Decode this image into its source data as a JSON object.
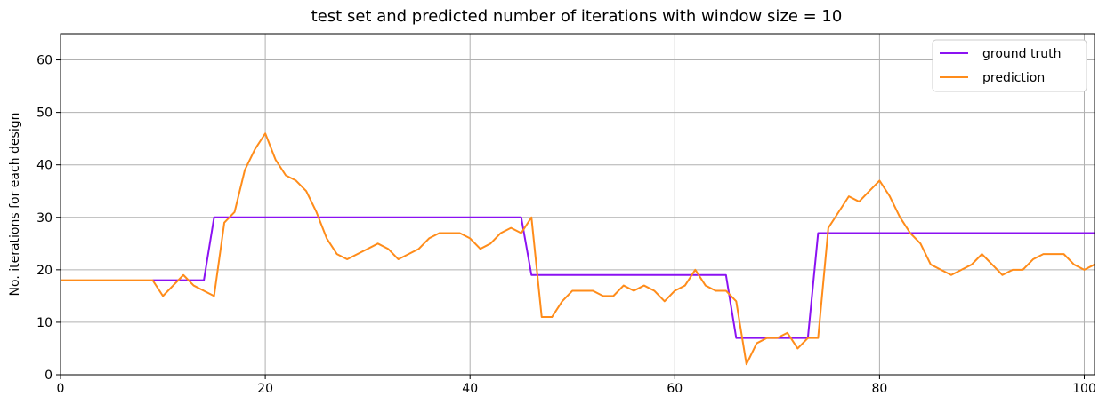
{
  "chart_data": {
    "type": "line",
    "title": "test set and predicted number of iterations with window size = 10",
    "xlabel": "",
    "ylabel": "No. iterations for each design",
    "xlim": [
      0,
      101
    ],
    "ylim": [
      0,
      65
    ],
    "xticks": [
      0,
      20,
      40,
      60,
      80,
      100
    ],
    "yticks": [
      0,
      10,
      20,
      30,
      40,
      50,
      60
    ],
    "grid": true,
    "legend_position": "top-right",
    "series": [
      {
        "name": "ground truth",
        "color": "#8b12f2",
        "x": [
          9,
          14,
          15,
          45,
          46,
          65,
          66,
          73,
          74,
          101
        ],
        "y": [
          18,
          18,
          30,
          30,
          19,
          19,
          7,
          7,
          27,
          27
        ]
      },
      {
        "name": "prediction",
        "color": "#ff8c1a",
        "x": [
          0,
          1,
          2,
          3,
          4,
          5,
          6,
          7,
          8,
          9,
          10,
          11,
          12,
          13,
          14,
          15,
          16,
          17,
          18,
          19,
          20,
          21,
          22,
          23,
          24,
          25,
          26,
          27,
          28,
          29,
          30,
          31,
          32,
          33,
          34,
          35,
          36,
          37,
          38,
          39,
          40,
          41,
          42,
          43,
          44,
          45,
          46,
          47,
          48,
          49,
          50,
          51,
          52,
          53,
          54,
          55,
          56,
          57,
          58,
          59,
          60,
          61,
          62,
          63,
          64,
          65,
          66,
          67,
          68,
          69,
          70,
          71,
          72,
          73,
          74,
          75,
          76,
          77,
          78,
          79,
          80,
          81,
          82,
          83,
          84,
          85,
          86,
          87,
          88,
          89,
          90,
          91,
          92,
          93,
          94,
          95,
          96,
          97,
          98,
          99,
          100,
          101
        ],
        "y": [
          18,
          18,
          18,
          18,
          18,
          18,
          18,
          18,
          18,
          18,
          15,
          17,
          19,
          17,
          16,
          15,
          29,
          31,
          39,
          43,
          46,
          41,
          38,
          37,
          35,
          31,
          26,
          23,
          22,
          23,
          24,
          25,
          24,
          22,
          23,
          24,
          26,
          27,
          27,
          27,
          26,
          24,
          25,
          27,
          28,
          27,
          30,
          11,
          11,
          14,
          16,
          16,
          16,
          15,
          15,
          17,
          16,
          17,
          16,
          14,
          16,
          17,
          20,
          17,
          16,
          16,
          14,
          2,
          6,
          7,
          7,
          8,
          5,
          7,
          7,
          28,
          31,
          34,
          33,
          35,
          37,
          34,
          30,
          27,
          25,
          21,
          20,
          19,
          20,
          21,
          23,
          21,
          19,
          20,
          20,
          22,
          23,
          23,
          23,
          21,
          20,
          21
        ]
      }
    ]
  }
}
